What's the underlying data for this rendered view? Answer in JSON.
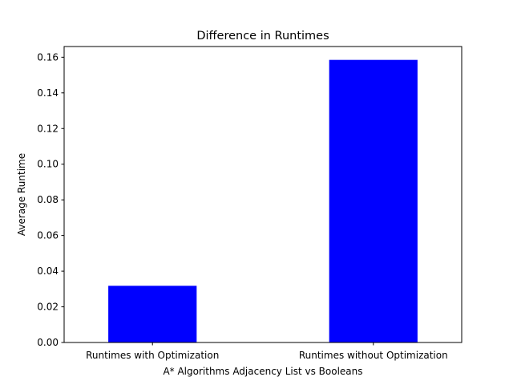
{
  "chart_data": {
    "type": "bar",
    "title": "Difference in Runtimes",
    "xlabel": "A* Algorithms Adjacency List vs Booleans",
    "ylabel": "Average Runtime",
    "categories": [
      "Runtimes with Optimization",
      "Runtimes without Optimization"
    ],
    "values": [
      0.0318,
      0.1585
    ],
    "ylim": [
      0,
      0.166
    ],
    "yticks": [
      "0.00",
      "0.02",
      "0.04",
      "0.06",
      "0.08",
      "0.10",
      "0.12",
      "0.14",
      "0.16"
    ],
    "bar_color": "#0000ff",
    "grid": false
  }
}
